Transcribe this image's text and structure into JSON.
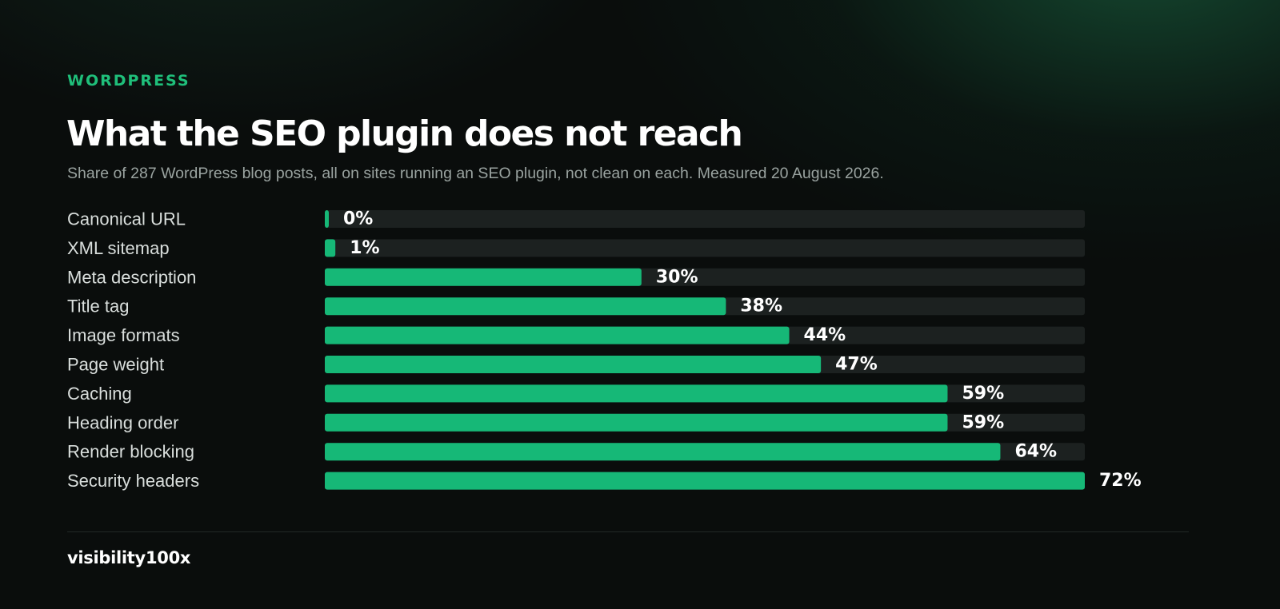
{
  "header": {
    "eyebrow": "WORDPRESS",
    "title": "What the SEO plugin does not reach",
    "subtitle": "Share of 287 WordPress blog posts, all on sites running an SEO plugin, not clean on each. Measured 20 August 2026."
  },
  "footer": {
    "brand": "visibility100x"
  },
  "colors": {
    "bar": "#16b877",
    "track": "#1c2120",
    "accent": "#1fbf7a"
  },
  "chart_data": {
    "type": "bar",
    "orientation": "horizontal",
    "categories": [
      "Canonical URL",
      "XML sitemap",
      "Meta description",
      "Title tag",
      "Image formats",
      "Page weight",
      "Caching",
      "Heading order",
      "Render blocking",
      "Security headers"
    ],
    "values": [
      0,
      1,
      30,
      38,
      44,
      47,
      59,
      59,
      64,
      72
    ],
    "labels": [
      "0%",
      "1%",
      "30%",
      "38%",
      "44%",
      "47%",
      "59%",
      "59%",
      "64%",
      "72%"
    ],
    "xlim": [
      0,
      72
    ],
    "grid": false,
    "legend": "none"
  }
}
